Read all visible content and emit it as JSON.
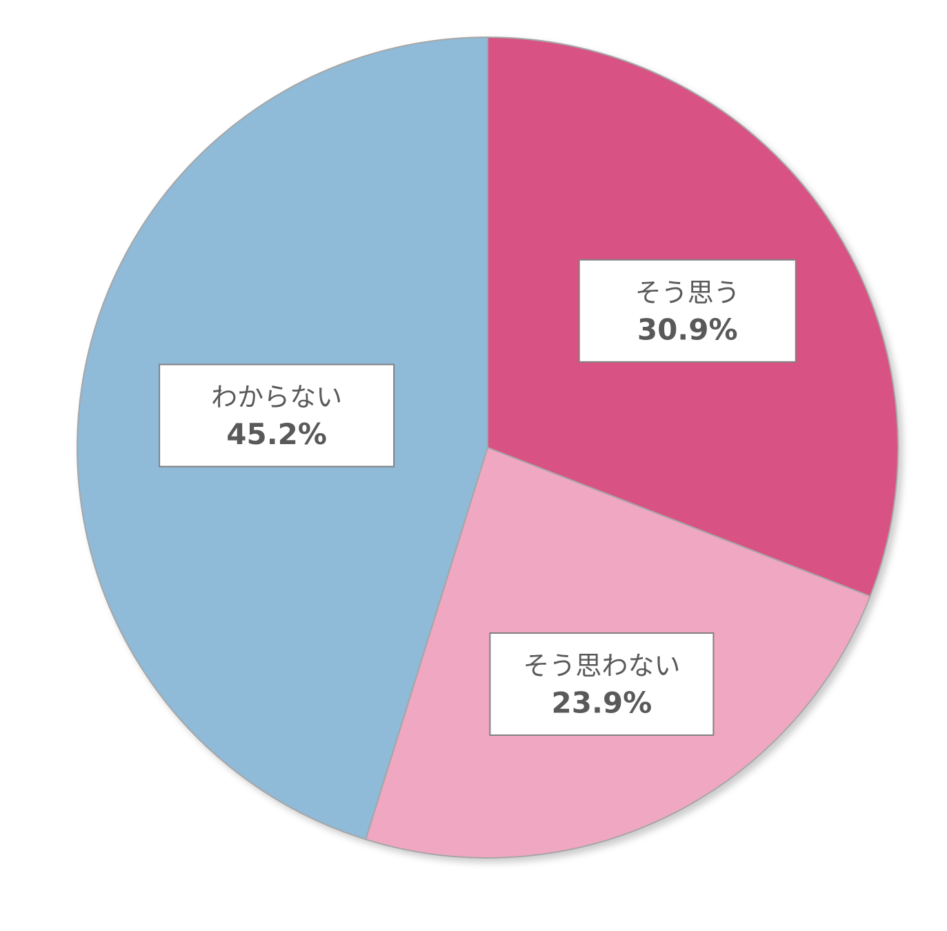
{
  "chart_data": {
    "type": "pie",
    "categories": [
      "そう思う",
      "そう思わない",
      "わからない"
    ],
    "values": [
      30.9,
      23.9,
      45.2
    ],
    "value_labels": [
      "30.9%",
      "23.9%",
      "45.2%"
    ],
    "colors": [
      "#d85383",
      "#f0a7c1",
      "#8fbad8"
    ]
  }
}
